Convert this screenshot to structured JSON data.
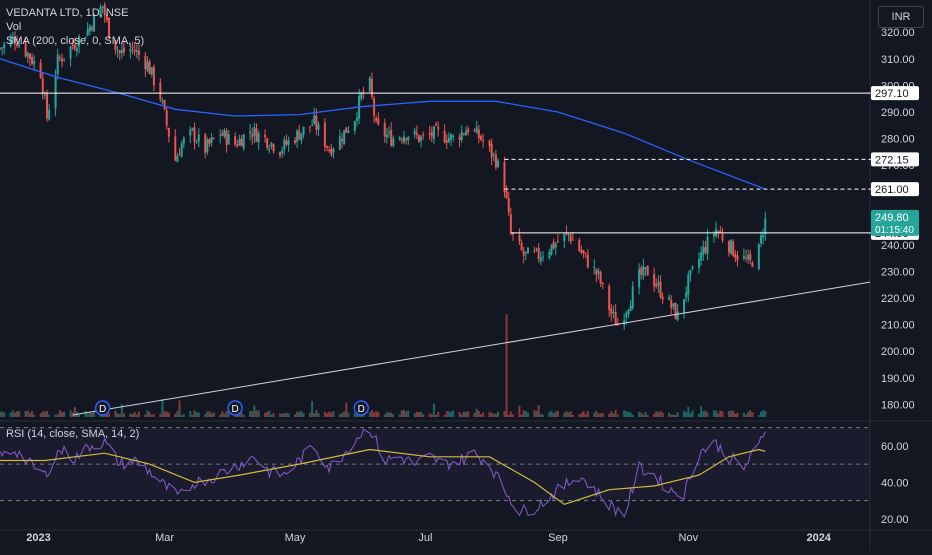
{
  "header": {
    "symbol_line": "VEDANTA LTD, 1D, NSE",
    "vol_label": "Vol",
    "sma_label": "SMA (200, close, 0, SMA, 5)",
    "currency": "INR",
    "rsi_label": "RSI (14, close, SMA, 14, 2)"
  },
  "colors": {
    "background": "#131722",
    "up": "#26a69a",
    "down": "#ef5350",
    "sma": "#2962ff",
    "rsi": "#7e57c2",
    "rsi_ma": "#d4b93c",
    "level_line": "#ffffff",
    "price_tag_bg": "#26a69a"
  },
  "chart_data": [
    {
      "type": "candlestick",
      "title": "VEDANTA LTD, 1D, NSE",
      "ylim": [
        176,
        331
      ],
      "y_ticks": [
        180,
        190,
        200,
        210,
        220,
        230,
        240,
        250,
        260,
        270,
        280,
        290,
        300,
        310,
        320
      ],
      "y_tick_labels": [
        "180.00",
        "190.00",
        "200.00",
        "210.00",
        "220.00",
        "230.00",
        "240.00",
        "250.00",
        "260.00",
        "270.00",
        "280.00",
        "290.00",
        "300.00",
        "310.00",
        "320.00"
      ],
      "x_tick_labels": [
        "2023",
        "Mar",
        "May",
        "Jul",
        "Sep",
        "Nov",
        "2024"
      ],
      "close_path": [
        [
          "2022-12-14",
          314
        ],
        [
          "2022-12-21",
          318
        ],
        [
          "2022-12-27",
          312
        ],
        [
          "2023-01-02",
          305
        ],
        [
          "2023-01-05",
          288
        ],
        [
          "2023-01-10",
          309
        ],
        [
          "2023-01-17",
          315
        ],
        [
          "2023-01-24",
          321
        ],
        [
          "2023-01-31",
          330
        ],
        [
          "2023-02-03",
          320
        ],
        [
          "2023-02-08",
          312
        ],
        [
          "2023-02-14",
          314
        ],
        [
          "2023-02-21",
          308
        ],
        [
          "2023-02-27",
          296
        ],
        [
          "2023-03-02",
          285
        ],
        [
          "2023-03-06",
          272
        ],
        [
          "2023-03-09",
          278
        ],
        [
          "2023-03-14",
          282
        ],
        [
          "2023-03-20",
          276
        ],
        [
          "2023-03-27",
          282
        ],
        [
          "2023-04-03",
          278
        ],
        [
          "2023-04-10",
          283
        ],
        [
          "2023-04-17",
          280
        ],
        [
          "2023-04-24",
          276
        ],
        [
          "2023-05-03",
          282
        ],
        [
          "2023-05-10",
          286
        ],
        [
          "2023-05-17",
          276
        ],
        [
          "2023-05-22",
          280
        ],
        [
          "2023-05-29",
          288
        ],
        [
          "2023-06-01",
          296
        ],
        [
          "2023-06-05",
          300
        ],
        [
          "2023-06-08",
          284
        ],
        [
          "2023-06-15",
          280
        ],
        [
          "2023-06-22",
          282
        ],
        [
          "2023-06-29",
          280
        ],
        [
          "2023-07-06",
          282
        ],
        [
          "2023-07-14",
          280
        ],
        [
          "2023-07-21",
          284
        ],
        [
          "2023-07-27",
          280
        ],
        [
          "2023-08-03",
          272
        ],
        [
          "2023-08-07",
          262
        ],
        [
          "2023-08-10",
          244
        ],
        [
          "2023-08-16",
          236
        ],
        [
          "2023-08-23",
          236
        ],
        [
          "2023-08-30",
          240
        ],
        [
          "2023-09-06",
          244
        ],
        [
          "2023-09-13",
          236
        ],
        [
          "2023-09-20",
          228
        ],
        [
          "2023-09-26",
          214
        ],
        [
          "2023-09-29",
          210
        ],
        [
          "2023-10-04",
          218
        ],
        [
          "2023-10-09",
          228
        ],
        [
          "2023-10-13",
          230
        ],
        [
          "2023-10-18",
          224
        ],
        [
          "2023-10-23",
          218
        ],
        [
          "2023-10-27",
          213
        ],
        [
          "2023-11-01",
          226
        ],
        [
          "2023-11-08",
          238
        ],
        [
          "2023-11-14",
          246
        ],
        [
          "2023-11-20",
          240
        ],
        [
          "2023-11-24",
          236
        ],
        [
          "2023-11-30",
          233
        ],
        [
          "2023-12-04",
          238
        ],
        [
          "2023-12-07",
          249.8
        ]
      ],
      "sma_200_path": [
        [
          "2022-12-14",
          310
        ],
        [
          "2023-01-10",
          303
        ],
        [
          "2023-02-08",
          297
        ],
        [
          "2023-03-06",
          291
        ],
        [
          "2023-04-03",
          288.5
        ],
        [
          "2023-05-03",
          289
        ],
        [
          "2023-06-01",
          292
        ],
        [
          "2023-07-03",
          294
        ],
        [
          "2023-08-03",
          294
        ],
        [
          "2023-09-01",
          290
        ],
        [
          "2023-10-02",
          282
        ],
        [
          "2023-11-01",
          272
        ],
        [
          "2023-12-07",
          261
        ]
      ],
      "horizontal_levels": [
        {
          "price": 297.1,
          "label": "297.10",
          "style": "solid",
          "from": "2022-12-14"
        },
        {
          "price": 272.15,
          "label": "272.15",
          "style": "dashed",
          "from": "2023-08-07"
        },
        {
          "price": 261.0,
          "label": "261.00",
          "style": "dashed",
          "from": "2023-08-07"
        },
        {
          "price": 244.5,
          "label": "244.50",
          "style": "solid",
          "from": "2023-08-10"
        }
      ],
      "trendline": {
        "from": [
          "2023-01-17",
          176
        ],
        "to": [
          "2024-01-25",
          226
        ]
      },
      "current_price": {
        "value": 249.8,
        "label": "249.80",
        "countdown": "01:15:40"
      },
      "dividend_markers": [
        "2023-01-31",
        "2023-04-03",
        "2023-06-01"
      ],
      "dividend_label": "D",
      "volume_spike": "2023-08-08"
    },
    {
      "type": "line",
      "title": "RSI (14, close, SMA, 14, 2)",
      "ylim": [
        15,
        72
      ],
      "y_ticks": [
        20,
        40,
        60
      ],
      "y_tick_labels": [
        "20.00",
        "40.00",
        "60.00"
      ],
      "bands": [
        30,
        50,
        70
      ],
      "series": [
        {
          "name": "RSI",
          "points": [
            [
              "2022-12-14",
              54
            ],
            [
              "2022-12-21",
              58
            ],
            [
              "2022-12-28",
              50
            ],
            [
              "2023-01-04",
              44
            ],
            [
              "2023-01-11",
              58
            ],
            [
              "2023-01-18",
              53
            ],
            [
              "2023-01-25",
              60
            ],
            [
              "2023-02-01",
              62
            ],
            [
              "2023-02-08",
              50
            ],
            [
              "2023-02-15",
              52
            ],
            [
              "2023-02-22",
              46
            ],
            [
              "2023-03-01",
              38
            ],
            [
              "2023-03-08",
              32
            ],
            [
              "2023-03-15",
              40
            ],
            [
              "2023-03-22",
              42
            ],
            [
              "2023-03-29",
              46
            ],
            [
              "2023-04-05",
              50
            ],
            [
              "2023-04-12",
              54
            ],
            [
              "2023-04-19",
              46
            ],
            [
              "2023-04-26",
              44
            ],
            [
              "2023-05-03",
              52
            ],
            [
              "2023-05-10",
              60
            ],
            [
              "2023-05-17",
              48
            ],
            [
              "2023-05-24",
              56
            ],
            [
              "2023-05-31",
              66
            ],
            [
              "2023-06-05",
              70
            ],
            [
              "2023-06-12",
              52
            ],
            [
              "2023-06-19",
              54
            ],
            [
              "2023-06-26",
              50
            ],
            [
              "2023-07-03",
              54
            ],
            [
              "2023-07-10",
              50
            ],
            [
              "2023-07-17",
              52
            ],
            [
              "2023-07-24",
              56
            ],
            [
              "2023-07-31",
              50
            ],
            [
              "2023-08-07",
              36
            ],
            [
              "2023-08-14",
              24
            ],
            [
              "2023-08-21",
              26
            ],
            [
              "2023-08-28",
              32
            ],
            [
              "2023-09-04",
              38
            ],
            [
              "2023-09-11",
              44
            ],
            [
              "2023-09-18",
              36
            ],
            [
              "2023-09-25",
              28
            ],
            [
              "2023-10-02",
              22
            ],
            [
              "2023-10-09",
              48
            ],
            [
              "2023-10-16",
              44
            ],
            [
              "2023-10-23",
              36
            ],
            [
              "2023-10-30",
              34
            ],
            [
              "2023-11-06",
              56
            ],
            [
              "2023-11-13",
              62
            ],
            [
              "2023-11-20",
              54
            ],
            [
              "2023-11-27",
              48
            ],
            [
              "2023-12-04",
              60
            ],
            [
              "2023-12-07",
              70
            ]
          ]
        },
        {
          "name": "RSI MA",
          "points": [
            [
              "2022-12-14",
              52
            ],
            [
              "2023-01-04",
              52
            ],
            [
              "2023-02-01",
              56
            ],
            [
              "2023-02-22",
              50
            ],
            [
              "2023-03-15",
              40
            ],
            [
              "2023-04-05",
              44
            ],
            [
              "2023-05-03",
              50
            ],
            [
              "2023-06-05",
              58
            ],
            [
              "2023-07-03",
              54
            ],
            [
              "2023-07-31",
              54
            ],
            [
              "2023-08-21",
              40
            ],
            [
              "2023-09-04",
              28
            ],
            [
              "2023-09-25",
              36
            ],
            [
              "2023-10-16",
              38
            ],
            [
              "2023-11-06",
              44
            ],
            [
              "2023-11-20",
              54
            ],
            [
              "2023-12-04",
              58
            ],
            [
              "2023-12-07",
              57
            ]
          ]
        }
      ]
    }
  ]
}
